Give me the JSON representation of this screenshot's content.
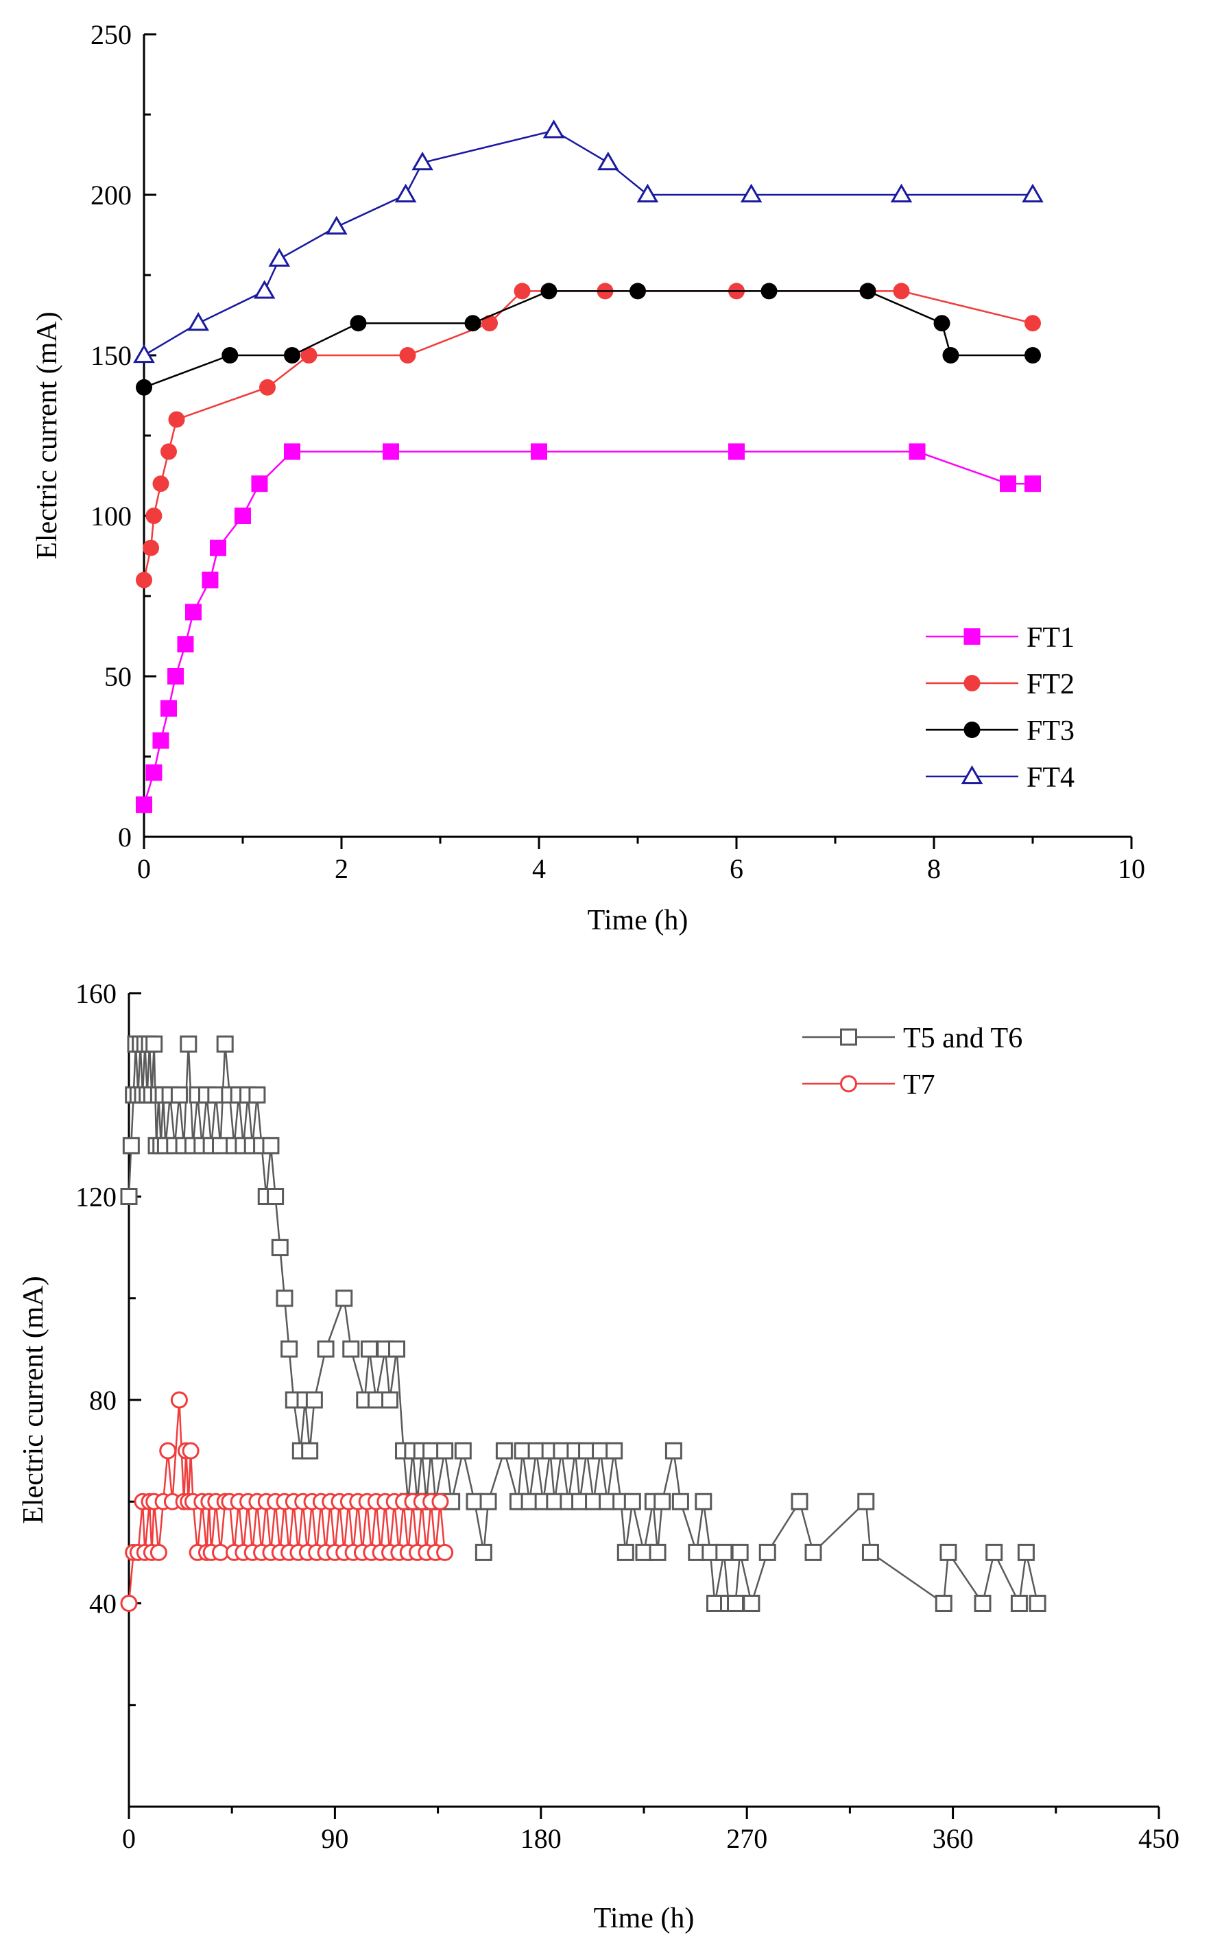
{
  "chart_data": [
    {
      "type": "line",
      "xlabel": "Time (h)",
      "ylabel": "Electric current (mA)",
      "xlim": [
        0,
        10
      ],
      "ylim": [
        0,
        250
      ],
      "xticks": [
        "0",
        "2",
        "4",
        "6",
        "8",
        "10"
      ],
      "yticks": [
        "0",
        "50",
        "100",
        "150",
        "200",
        "250"
      ],
      "grid": false,
      "legend_position": "lower-right",
      "series": [
        {
          "name": "FT1",
          "color": "#ff00ff",
          "marker": "square-filled",
          "x": [
            0,
            0.1,
            0.17,
            0.25,
            0.32,
            0.42,
            0.5,
            0.67,
            0.75,
            1.0,
            1.17,
            1.5,
            2.5,
            4.0,
            6.0,
            7.83,
            8.75,
            9.0
          ],
          "y": [
            10,
            20,
            30,
            40,
            50,
            60,
            70,
            80,
            90,
            100,
            110,
            120,
            120,
            120,
            120,
            120,
            110,
            110
          ]
        },
        {
          "name": "FT2",
          "color": "#f03c3c",
          "marker": "circle-filled",
          "x": [
            0,
            0.07,
            0.1,
            0.17,
            0.25,
            0.33,
            1.25,
            1.67,
            2.67,
            3.5,
            3.83,
            4.67,
            6.0,
            7.67,
            9.0
          ],
          "y": [
            80,
            90,
            100,
            110,
            120,
            130,
            140,
            150,
            150,
            160,
            170,
            170,
            170,
            170,
            160
          ]
        },
        {
          "name": "FT3",
          "color": "#000000",
          "marker": "circle-filled",
          "x": [
            0,
            0.87,
            1.5,
            2.17,
            3.33,
            4.1,
            5.0,
            6.33,
            7.33,
            8.08,
            8.17,
            9.0
          ],
          "y": [
            140,
            150,
            150,
            160,
            160,
            170,
            170,
            170,
            170,
            160,
            150,
            150
          ]
        },
        {
          "name": "FT4",
          "color": "#1a1aa0",
          "marker": "triangle-open",
          "x": [
            0,
            0.55,
            1.22,
            1.37,
            1.95,
            2.65,
            2.82,
            4.15,
            4.7,
            5.1,
            6.15,
            7.67,
            9.0
          ],
          "y": [
            150,
            160,
            170,
            180,
            190,
            200,
            210,
            220,
            210,
            200,
            200,
            200,
            200
          ]
        }
      ]
    },
    {
      "type": "line",
      "xlabel": "Time (h)",
      "ylabel": "Electric current (mA)",
      "xlim": [
        0,
        450
      ],
      "ylim": [
        0,
        160
      ],
      "xticks": [
        "0",
        "90",
        "180",
        "270",
        "360",
        "450"
      ],
      "yticks": [
        "40",
        "80",
        "120",
        "160"
      ],
      "grid": false,
      "legend_position": "top-right",
      "series": [
        {
          "name": "T5 and T6",
          "color": "#5a5a5a",
          "marker": "square-open",
          "x": [
            0,
            1,
            2,
            3,
            4,
            5,
            6,
            7,
            8,
            9,
            10,
            11,
            12,
            13,
            14,
            15,
            16,
            18,
            20,
            22,
            24,
            26,
            28,
            30,
            32,
            34,
            36,
            38,
            40,
            42,
            44,
            46,
            48,
            50,
            52,
            54,
            56,
            58,
            60,
            62,
            64,
            66,
            68,
            70,
            72,
            75,
            77,
            79,
            81,
            86,
            94,
            97,
            103,
            105,
            108,
            112,
            114,
            117,
            120,
            122,
            124,
            126,
            128,
            130,
            132,
            134,
            138,
            141,
            146,
            151,
            155,
            157,
            164,
            170,
            172,
            175,
            178,
            181,
            184,
            186,
            189,
            192,
            195,
            197,
            200,
            203,
            206,
            209,
            212,
            215,
            217,
            220,
            225,
            229,
            231,
            233,
            238,
            241,
            248,
            251,
            254,
            256,
            260,
            262,
            265,
            267,
            272,
            279,
            293,
            299,
            322,
            324,
            356,
            358,
            373,
            378,
            389,
            392,
            397
          ],
          "y": [
            120,
            130,
            140,
            150,
            140,
            150,
            140,
            150,
            140,
            150,
            140,
            150,
            130,
            140,
            130,
            140,
            130,
            140,
            130,
            140,
            130,
            150,
            130,
            140,
            130,
            140,
            130,
            140,
            130,
            150,
            140,
            130,
            140,
            130,
            140,
            130,
            140,
            130,
            120,
            130,
            120,
            110,
            100,
            90,
            80,
            70,
            80,
            70,
            80,
            90,
            100,
            90,
            80,
            90,
            80,
            90,
            80,
            90,
            70,
            60,
            70,
            60,
            70,
            60,
            70,
            60,
            70,
            60,
            70,
            60,
            50,
            60,
            70,
            60,
            70,
            60,
            70,
            60,
            70,
            60,
            70,
            60,
            70,
            60,
            70,
            60,
            70,
            60,
            70,
            60,
            50,
            60,
            50,
            60,
            50,
            60,
            70,
            60,
            50,
            60,
            50,
            40,
            50,
            40,
            40,
            50,
            40,
            50,
            60,
            50,
            60,
            50,
            40,
            50,
            40,
            50,
            40,
            50,
            40
          ]
        },
        {
          "name": "T7",
          "color": "#f03c3c",
          "marker": "circle-open",
          "x": [
            0,
            2,
            4,
            6,
            7,
            9,
            10,
            11,
            13,
            15,
            17,
            19,
            22,
            24,
            25,
            26,
            27,
            28,
            30,
            32,
            34,
            35,
            36,
            38,
            40,
            42,
            44,
            46,
            48,
            50,
            52,
            54,
            56,
            58,
            60,
            62,
            64,
            66,
            68,
            70,
            72,
            74,
            76,
            78,
            80,
            82,
            84,
            86,
            88,
            90,
            92,
            94,
            96,
            98,
            100,
            102,
            104,
            106,
            108,
            110,
            112,
            114,
            116,
            118,
            120,
            122,
            124,
            126,
            128,
            130,
            132,
            134,
            136,
            138
          ],
          "y": [
            40,
            50,
            50,
            60,
            50,
            60,
            50,
            60,
            50,
            60,
            70,
            60,
            80,
            60,
            70,
            60,
            70,
            60,
            50,
            60,
            50,
            60,
            50,
            60,
            50,
            60,
            60,
            50,
            60,
            50,
            60,
            50,
            60,
            50,
            60,
            50,
            60,
            50,
            60,
            50,
            60,
            50,
            60,
            50,
            60,
            50,
            60,
            50,
            60,
            50,
            60,
            50,
            60,
            50,
            60,
            50,
            60,
            50,
            60,
            50,
            60,
            50,
            60,
            50,
            60,
            50,
            60,
            50,
            60,
            50,
            60,
            50,
            60,
            50
          ]
        }
      ]
    }
  ]
}
